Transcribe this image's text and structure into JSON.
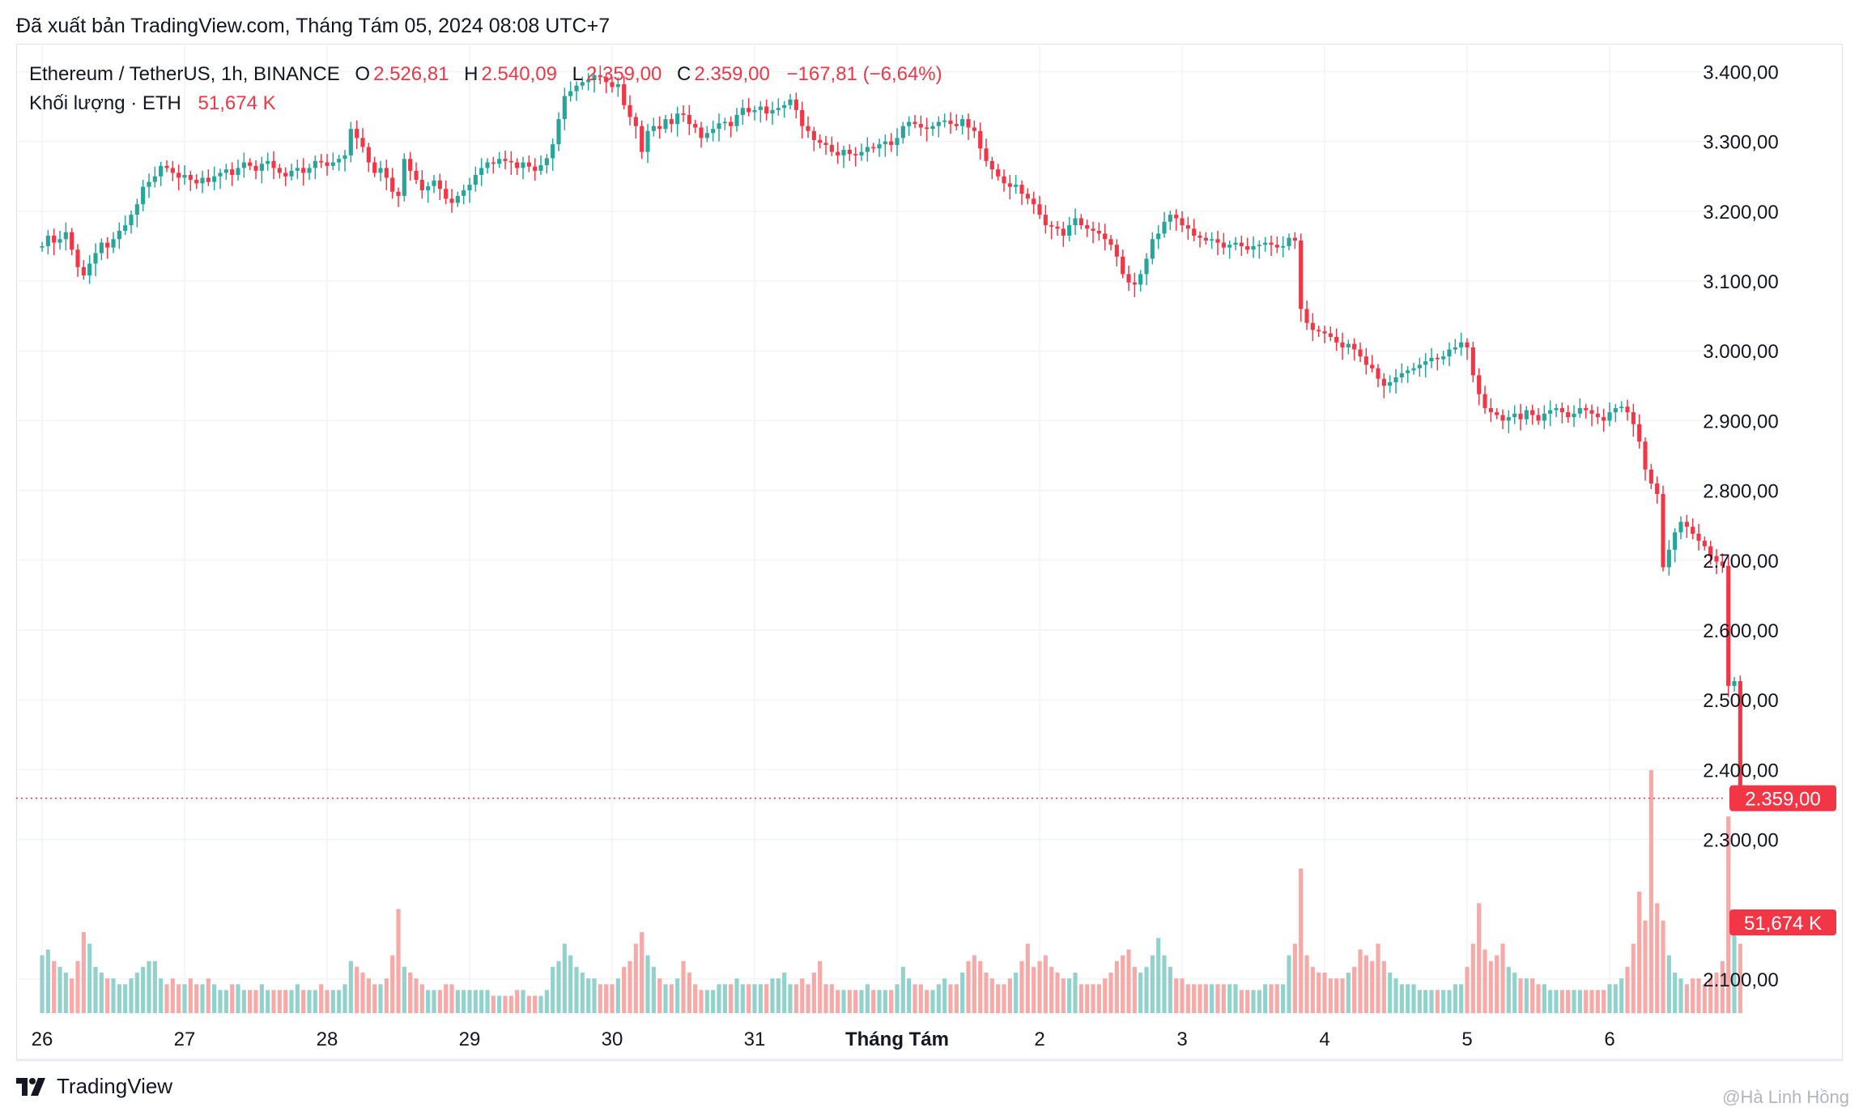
{
  "published_line": "Đã xuất bản TradingView.com, Tháng Tám 05, 2024 08:08 UTC+7",
  "legend": {
    "symbol": "Ethereum / TetherUS, 1h, BINANCE",
    "o_label": "O",
    "o_value": "2.526,81",
    "h_label": "H",
    "h_value": "2.540,09",
    "l_label": "L",
    "l_value": "2.359,00",
    "c_label": "C",
    "c_value": "2.359,00",
    "change": "−167,81 (−6,64%)",
    "volume_label": "Khối lượng · ETH",
    "volume_value": "51,674 K"
  },
  "footer": {
    "brand": "TradingView",
    "logo_icon": "tradingview-logo-icon"
  },
  "watermark": "@Hà Linh Hồng",
  "colors": {
    "up": "#26a69a",
    "down": "#f23645",
    "up_volume": "#92d2cc",
    "down_volume": "#f7a9a7",
    "grid": "#f0f3fa"
  },
  "chart_data": {
    "type": "candlestick",
    "interval": "1h",
    "price_axis": {
      "ylim": [
        2050,
        3440
      ],
      "ticks": [
        3400,
        3300,
        3200,
        3100,
        3000,
        2900,
        2800,
        2700,
        2600,
        2500,
        2400,
        2300,
        2100
      ],
      "tick_labels": [
        "3.400,00",
        "3.300,00",
        "3.200,00",
        "3.100,00",
        "3.000,00",
        "2.900,00",
        "2.800,00",
        "2.700,00",
        "2.600,00",
        "2.500,00",
        "2.400,00",
        "2.300,00",
        "2.100,00"
      ]
    },
    "x_axis": {
      "tick_labels": [
        "26",
        "27",
        "28",
        "29",
        "30",
        "31",
        "Tháng Tám",
        "2",
        "3",
        "4",
        "5",
        "6"
      ],
      "bold_label": "Tháng Tám"
    },
    "last_price": 2359,
    "last_price_label": "2.359,00",
    "last_volume_label": "51,674 K",
    "bars_per_day": 24,
    "start_open": 3148,
    "closes": [
      3150,
      3165,
      3155,
      3160,
      3170,
      3145,
      3120,
      3108,
      3125,
      3140,
      3155,
      3148,
      3160,
      3172,
      3180,
      3195,
      3210,
      3235,
      3242,
      3250,
      3265,
      3262,
      3255,
      3248,
      3252,
      3245,
      3240,
      3248,
      3242,
      3250,
      3255,
      3260,
      3252,
      3262,
      3270,
      3265,
      3258,
      3268,
      3272,
      3262,
      3255,
      3250,
      3258,
      3262,
      3255,
      3262,
      3272,
      3270,
      3265,
      3270,
      3275,
      3280,
      3318,
      3305,
      3292,
      3270,
      3255,
      3262,
      3248,
      3228,
      3222,
      3275,
      3258,
      3245,
      3230,
      3236,
      3244,
      3232,
      3218,
      3212,
      3222,
      3230,
      3238,
      3252,
      3262,
      3270,
      3268,
      3275,
      3272,
      3270,
      3262,
      3270,
      3264,
      3258,
      3266,
      3276,
      3296,
      3332,
      3365,
      3372,
      3380,
      3385,
      3388,
      3395,
      3392,
      3385,
      3378,
      3382,
      3352,
      3335,
      3322,
      3285,
      3315,
      3322,
      3318,
      3332,
      3325,
      3340,
      3338,
      3325,
      3320,
      3305,
      3312,
      3318,
      3326,
      3328,
      3322,
      3338,
      3348,
      3342,
      3345,
      3350,
      3340,
      3345,
      3348,
      3352,
      3360,
      3345,
      3322,
      3315,
      3302,
      3298,
      3295,
      3285,
      3280,
      3288,
      3282,
      3280,
      3285,
      3292,
      3290,
      3296,
      3300,
      3295,
      3305,
      3322,
      3328,
      3325,
      3320,
      3318,
      3322,
      3328,
      3330,
      3325,
      3322,
      3332,
      3320,
      3315,
      3290,
      3272,
      3260,
      3250,
      3240,
      3235,
      3238,
      3225,
      3218,
      3210,
      3195,
      3180,
      3178,
      3175,
      3165,
      3180,
      3190,
      3180,
      3175,
      3172,
      3168,
      3160,
      3152,
      3135,
      3110,
      3098,
      3095,
      3110,
      3132,
      3160,
      3168,
      3185,
      3195,
      3190,
      3180,
      3175,
      3165,
      3162,
      3158,
      3160,
      3155,
      3148,
      3152,
      3155,
      3150,
      3145,
      3150,
      3152,
      3155,
      3152,
      3148,
      3150,
      3162,
      3158,
      3060,
      3040,
      3030,
      3028,
      3025,
      3020,
      3012,
      3005,
      3010,
      3002,
      2992,
      2980,
      2975,
      2960,
      2950,
      2955,
      2962,
      2968,
      2972,
      2975,
      2980,
      2985,
      2990,
      2988,
      2992,
      3002,
      3005,
      3012,
      3005,
      2965,
      2938,
      2918,
      2912,
      2908,
      2900,
      2905,
      2910,
      2902,
      2915,
      2908,
      2900,
      2910,
      2915,
      2918,
      2912,
      2905,
      2910,
      2918,
      2915,
      2910,
      2905,
      2900,
      2912,
      2918,
      2920,
      2912,
      2895,
      2870,
      2830,
      2810,
      2795,
      2690,
      2715,
      2740,
      2755,
      2748,
      2738,
      2728,
      2720,
      2706,
      2698,
      2692,
      2520,
      2526.81,
      2359
    ],
    "volumes": [
      1.0,
      1.1,
      0.9,
      0.8,
      0.7,
      0.6,
      0.9,
      1.4,
      1.2,
      0.8,
      0.7,
      0.6,
      0.6,
      0.5,
      0.5,
      0.6,
      0.7,
      0.8,
      0.9,
      0.9,
      0.6,
      0.5,
      0.6,
      0.5,
      0.5,
      0.6,
      0.5,
      0.5,
      0.6,
      0.5,
      0.4,
      0.4,
      0.5,
      0.5,
      0.4,
      0.4,
      0.4,
      0.5,
      0.4,
      0.4,
      0.4,
      0.4,
      0.4,
      0.5,
      0.4,
      0.4,
      0.4,
      0.5,
      0.4,
      0.4,
      0.4,
      0.5,
      0.9,
      0.8,
      0.7,
      0.6,
      0.5,
      0.5,
      0.6,
      1.0,
      1.8,
      0.8,
      0.7,
      0.6,
      0.5,
      0.4,
      0.4,
      0.4,
      0.5,
      0.5,
      0.4,
      0.4,
      0.4,
      0.4,
      0.4,
      0.4,
      0.3,
      0.3,
      0.3,
      0.3,
      0.4,
      0.4,
      0.3,
      0.3,
      0.3,
      0.4,
      0.8,
      0.9,
      1.2,
      1.0,
      0.8,
      0.7,
      0.6,
      0.6,
      0.5,
      0.5,
      0.5,
      0.6,
      0.8,
      0.9,
      1.2,
      1.4,
      1.0,
      0.8,
      0.6,
      0.5,
      0.5,
      0.6,
      0.9,
      0.7,
      0.5,
      0.4,
      0.4,
      0.4,
      0.5,
      0.5,
      0.5,
      0.6,
      0.5,
      0.5,
      0.5,
      0.5,
      0.5,
      0.6,
      0.6,
      0.7,
      0.5,
      0.5,
      0.6,
      0.5,
      0.7,
      0.9,
      0.5,
      0.5,
      0.4,
      0.4,
      0.4,
      0.4,
      0.4,
      0.5,
      0.4,
      0.4,
      0.4,
      0.4,
      0.5,
      0.8,
      0.6,
      0.5,
      0.5,
      0.4,
      0.4,
      0.5,
      0.6,
      0.5,
      0.5,
      0.7,
      0.9,
      1.0,
      0.9,
      0.7,
      0.6,
      0.5,
      0.5,
      0.6,
      0.7,
      0.9,
      1.2,
      0.8,
      0.9,
      1.0,
      0.8,
      0.7,
      0.6,
      0.6,
      0.7,
      0.5,
      0.5,
      0.5,
      0.5,
      0.6,
      0.7,
      0.9,
      1.0,
      1.1,
      0.8,
      0.7,
      0.8,
      1.0,
      1.3,
      1.0,
      0.8,
      0.6,
      0.6,
      0.5,
      0.5,
      0.5,
      0.5,
      0.5,
      0.5,
      0.5,
      0.5,
      0.5,
      0.4,
      0.4,
      0.4,
      0.4,
      0.5,
      0.5,
      0.5,
      0.5,
      1.0,
      1.2,
      2.5,
      1.0,
      0.8,
      0.7,
      0.7,
      0.6,
      0.6,
      0.6,
      0.7,
      0.8,
      1.1,
      1.0,
      0.9,
      1.2,
      0.9,
      0.7,
      0.6,
      0.5,
      0.5,
      0.5,
      0.4,
      0.4,
      0.4,
      0.4,
      0.4,
      0.4,
      0.5,
      0.5,
      0.8,
      1.2,
      1.9,
      1.1,
      0.9,
      1.0,
      1.2,
      0.8,
      0.7,
      0.6,
      0.6,
      0.6,
      0.5,
      0.5,
      0.4,
      0.4,
      0.4,
      0.4,
      0.4,
      0.4,
      0.4,
      0.4,
      0.4,
      0.4,
      0.5,
      0.5,
      0.6,
      0.8,
      1.2,
      2.1,
      1.6,
      4.2,
      1.9,
      1.6,
      1.0,
      0.7,
      0.6,
      0.5,
      0.6,
      0.6,
      0.5,
      0.6,
      0.7,
      0.9,
      3.4,
      1.6,
      1.2
    ]
  }
}
